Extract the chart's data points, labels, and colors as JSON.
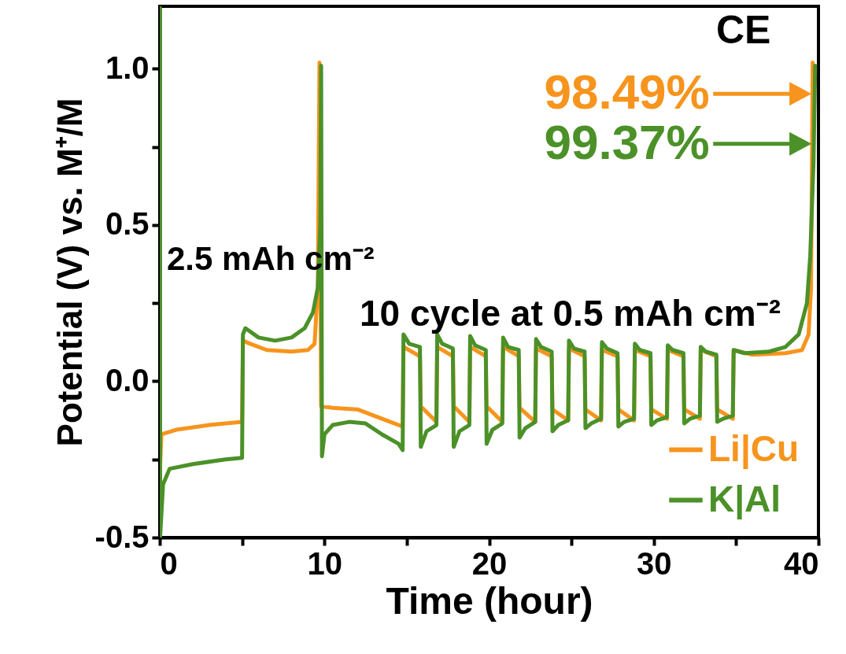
{
  "chart_data": {
    "type": "line",
    "xlabel": "Time (hour)",
    "ylabel": "Potential (V) vs. M⁺/M",
    "xlim": [
      0,
      40
    ],
    "xticks": [
      0,
      {
        "value": 5,
        "label": null
      },
      10,
      {
        "value": 15,
        "label": null
      },
      20,
      {
        "value": 25,
        "label": null
      },
      30,
      {
        "value": 35,
        "label": null
      },
      40
    ],
    "ylim": [
      -0.5,
      1.2
    ],
    "yticks": [
      -0.5,
      {
        "value": -0.25,
        "label": null
      },
      {
        "value": 0,
        "label": "0.0"
      },
      {
        "value": 0.25,
        "label": null
      },
      0.5,
      {
        "value": 0.75,
        "label": null
      },
      {
        "value": 1,
        "label": "1.0"
      }
    ],
    "legend": "bottom right",
    "grid": false,
    "annotations": [
      "CE",
      "2.5 mAh cm⁻²",
      "10 cycle at 0.5 mAh cm⁻²",
      {
        "text": "98.49%",
        "x": 39.7,
        "y": 0.92
      },
      {
        "text": "99.37%",
        "x": 39.7,
        "y": 0.76
      }
    ],
    "series": [
      {
        "name": "Li|Cu",
        "color": "#f7941d",
        "x": [
          0,
          0.1,
          1,
          3,
          5,
          5.05,
          5.5,
          6.5,
          8,
          9,
          9.4,
          9.6,
          9.7,
          9.8,
          10.5,
          12,
          13.5,
          14.75,
          14.8,
          15.8,
          15.85,
          16.8,
          16.85,
          17.8,
          17.85,
          18.8,
          18.85,
          19.8,
          19.85,
          20.8,
          20.85,
          21.8,
          21.85,
          22.8,
          22.85,
          23.8,
          23.85,
          24.8,
          24.85,
          25.8,
          25.85,
          26.8,
          26.85,
          27.8,
          27.85,
          28.8,
          28.85,
          29.8,
          29.85,
          30.8,
          30.85,
          31.8,
          31.85,
          32.8,
          32.85,
          33.8,
          33.85,
          34.8,
          34.85,
          36,
          38,
          39,
          39.4,
          39.55,
          39.65
        ],
        "values": [
          -0.3,
          -0.17,
          -0.155,
          -0.14,
          -0.13,
          0.13,
          0.12,
          0.1,
          0.095,
          0.1,
          0.12,
          0.3,
          1.02,
          -0.08,
          -0.085,
          -0.09,
          -0.12,
          -0.145,
          0.11,
          0.08,
          -0.08,
          -0.13,
          0.11,
          0.08,
          -0.08,
          -0.13,
          0.11,
          0.08,
          -0.08,
          -0.13,
          0.11,
          0.08,
          -0.085,
          -0.13,
          0.105,
          0.08,
          -0.09,
          -0.125,
          0.105,
          0.08,
          -0.09,
          -0.125,
          0.1,
          0.08,
          -0.09,
          -0.125,
          0.1,
          0.08,
          -0.09,
          -0.12,
          0.1,
          0.08,
          -0.09,
          -0.12,
          0.1,
          0.08,
          -0.09,
          -0.12,
          0.1,
          0.085,
          0.09,
          0.1,
          0.15,
          0.3,
          1.02
        ]
      },
      {
        "name": "K|Al",
        "color": "#4b9128",
        "x": [
          0,
          0.02,
          0.2,
          0.6,
          2,
          4,
          5,
          5.05,
          5.2,
          6,
          7,
          8,
          8.8,
          9.3,
          9.6,
          9.75,
          9.8,
          9.85,
          10,
          10.5,
          11.5,
          12.5,
          13.5,
          14.5,
          14.75,
          14.8,
          15.15,
          15.8,
          15.85,
          16.2,
          16.8,
          16.85,
          17.15,
          17.8,
          17.85,
          18.2,
          18.8,
          18.85,
          19.15,
          19.8,
          19.85,
          20.2,
          20.8,
          20.85,
          21.15,
          21.8,
          21.85,
          22.2,
          22.8,
          22.85,
          23.15,
          23.8,
          23.85,
          24.2,
          24.8,
          24.85,
          25.15,
          25.8,
          25.85,
          26.2,
          26.8,
          26.85,
          27.15,
          27.8,
          27.85,
          28.2,
          28.8,
          28.85,
          29.15,
          29.8,
          29.85,
          30.2,
          30.8,
          30.85,
          31.15,
          31.8,
          31.85,
          32.2,
          32.8,
          32.85,
          33.15,
          33.8,
          33.85,
          34.2,
          34.8,
          34.85,
          35.5,
          37,
          38,
          38.8,
          39.3,
          39.5,
          39.7,
          39.8
        ],
        "values": [
          1.2,
          -0.5,
          -0.33,
          -0.28,
          -0.265,
          -0.25,
          -0.245,
          0.15,
          0.17,
          0.14,
          0.13,
          0.14,
          0.17,
          0.22,
          0.3,
          0.5,
          1.01,
          -0.24,
          -0.17,
          -0.14,
          -0.13,
          -0.135,
          -0.17,
          -0.2,
          -0.22,
          0.15,
          0.12,
          0.11,
          -0.21,
          -0.16,
          -0.14,
          0.15,
          0.12,
          0.105,
          -0.21,
          -0.16,
          -0.14,
          0.145,
          0.115,
          0.1,
          -0.2,
          -0.155,
          -0.135,
          0.14,
          0.11,
          0.1,
          -0.18,
          -0.15,
          -0.13,
          0.135,
          0.11,
          0.095,
          -0.16,
          -0.14,
          -0.125,
          0.13,
          0.105,
          0.095,
          -0.15,
          -0.135,
          -0.12,
          0.125,
          0.105,
          0.09,
          -0.145,
          -0.13,
          -0.12,
          0.12,
          0.1,
          0.09,
          -0.14,
          -0.125,
          -0.115,
          0.115,
          0.1,
          0.09,
          -0.135,
          -0.12,
          -0.11,
          0.11,
          0.095,
          0.085,
          -0.13,
          -0.12,
          -0.11,
          0.1,
          0.09,
          0.095,
          0.11,
          0.15,
          0.25,
          0.4,
          0.7,
          1.01
        ]
      }
    ]
  }
}
